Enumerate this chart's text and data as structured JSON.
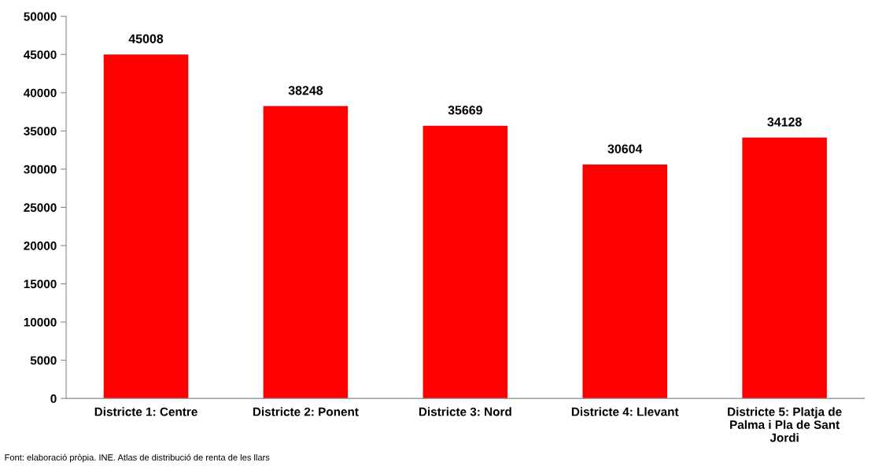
{
  "chart_data": {
    "type": "bar",
    "categories": [
      "Districte 1: Centre",
      "Districte 2: Ponent",
      "Districte 3: Nord",
      "Districte 4: Llevant",
      "Districte 5: Platja de\nPalma i Pla de Sant\nJordi"
    ],
    "values": [
      45008,
      38248,
      35669,
      30604,
      34128
    ],
    "color": "#ff0000",
    "ylim": [
      0,
      50000
    ],
    "yticks": [
      0,
      5000,
      10000,
      15000,
      20000,
      25000,
      30000,
      35000,
      40000,
      45000,
      50000
    ],
    "data_labels": true,
    "grid": false,
    "legend": false,
    "annotations": [
      "Font: elaboració pròpia. INE. Atlas de distribució de renta de les llars"
    ]
  }
}
